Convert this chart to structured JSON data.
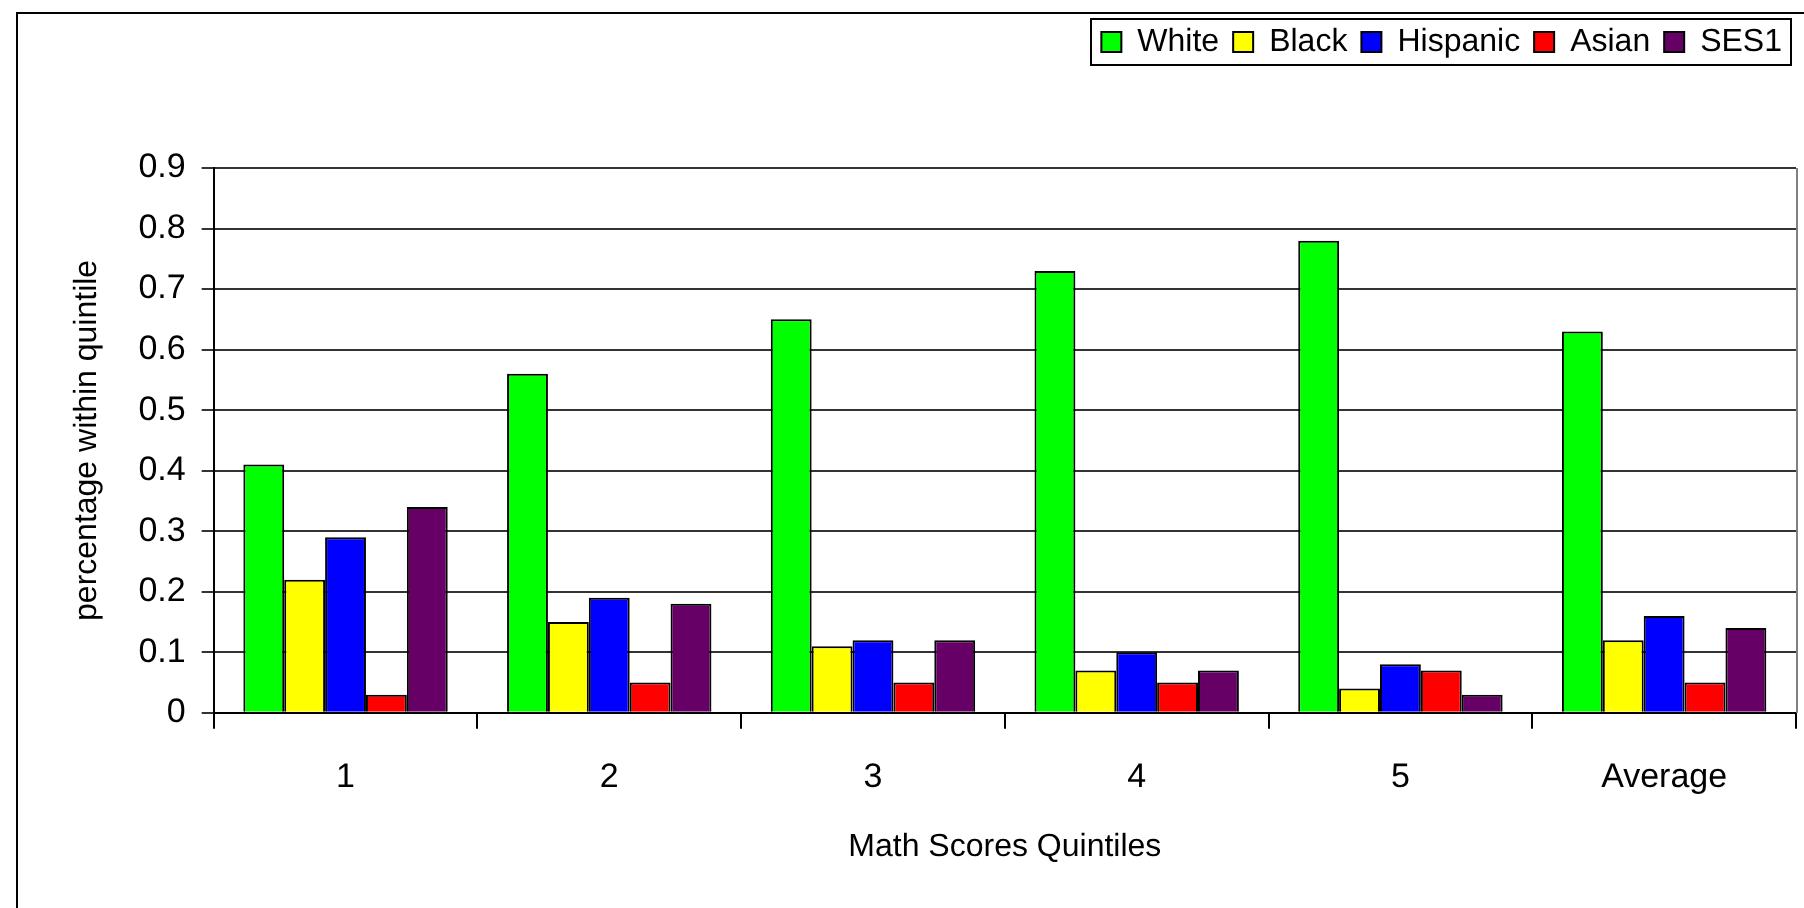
{
  "chart_data": {
    "type": "bar",
    "xlabel": "Math Scores Quintiles",
    "ylabel": "percentage within quintile",
    "categories": [
      "1",
      "2",
      "3",
      "4",
      "5",
      "Average"
    ],
    "series": [
      {
        "name": "White",
        "color": "#00ff00",
        "values": [
          0.41,
          0.56,
          0.65,
          0.73,
          0.78,
          0.63
        ]
      },
      {
        "name": "Black",
        "color": "#ffff00",
        "values": [
          0.22,
          0.15,
          0.11,
          0.07,
          0.04,
          0.12
        ]
      },
      {
        "name": "Hispanic",
        "color": "#0000ff",
        "values": [
          0.29,
          0.19,
          0.12,
          0.1,
          0.08,
          0.16
        ]
      },
      {
        "name": "Asian",
        "color": "#ff0000",
        "values": [
          0.03,
          0.05,
          0.05,
          0.05,
          0.07,
          0.05
        ]
      },
      {
        "name": "SES1",
        "color": "#660066",
        "values": [
          0.34,
          0.18,
          0.12,
          0.07,
          0.03,
          0.14
        ]
      }
    ],
    "ylim": [
      0,
      0.9
    ],
    "yticks": [
      0,
      0.1,
      0.2,
      0.3,
      0.4,
      0.5,
      0.6,
      0.7,
      0.8,
      0.9
    ],
    "grid": "y",
    "legend": "top right"
  }
}
